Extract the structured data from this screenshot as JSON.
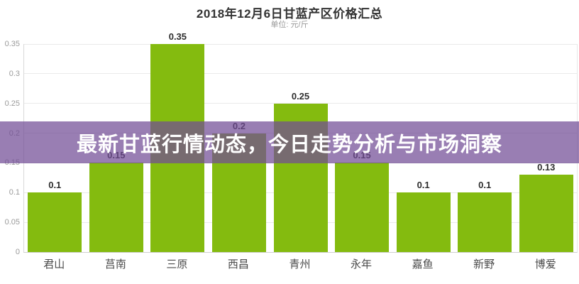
{
  "header": {
    "title": "2018年12月6日甘蓝产区价格汇总",
    "subtitle": "单位: 元/斤"
  },
  "banner": {
    "text": "最新甘蓝行情动态，今日走势分析与市场洞察",
    "background": "rgba(113,76,150,0.72)",
    "text_color": "#ffffff"
  },
  "chart_data": {
    "type": "bar",
    "title": "2018年12月6日甘蓝产区价格汇总",
    "subtitle_unit": "单位: 元/斤",
    "categories": [
      "君山",
      "莒南",
      "三原",
      "西昌",
      "青州",
      "永年",
      "嘉鱼",
      "新野",
      "博爱"
    ],
    "values": [
      0.1,
      0.15,
      0.35,
      0.2,
      0.25,
      0.15,
      0.1,
      0.1,
      0.13
    ],
    "value_labels": [
      "0.1",
      "0.15",
      "0.35",
      "0.2",
      "0.25",
      "0.15",
      "0.1",
      "0.1",
      "0.13"
    ],
    "xlabel": "",
    "ylabel": "元/斤",
    "ylim": [
      0,
      0.35
    ],
    "yticks": [
      0,
      0.05,
      0.1,
      0.15,
      0.2,
      0.25,
      0.3,
      0.35
    ],
    "grid": true,
    "legend": "none",
    "bar_color": "#84bb0f"
  }
}
